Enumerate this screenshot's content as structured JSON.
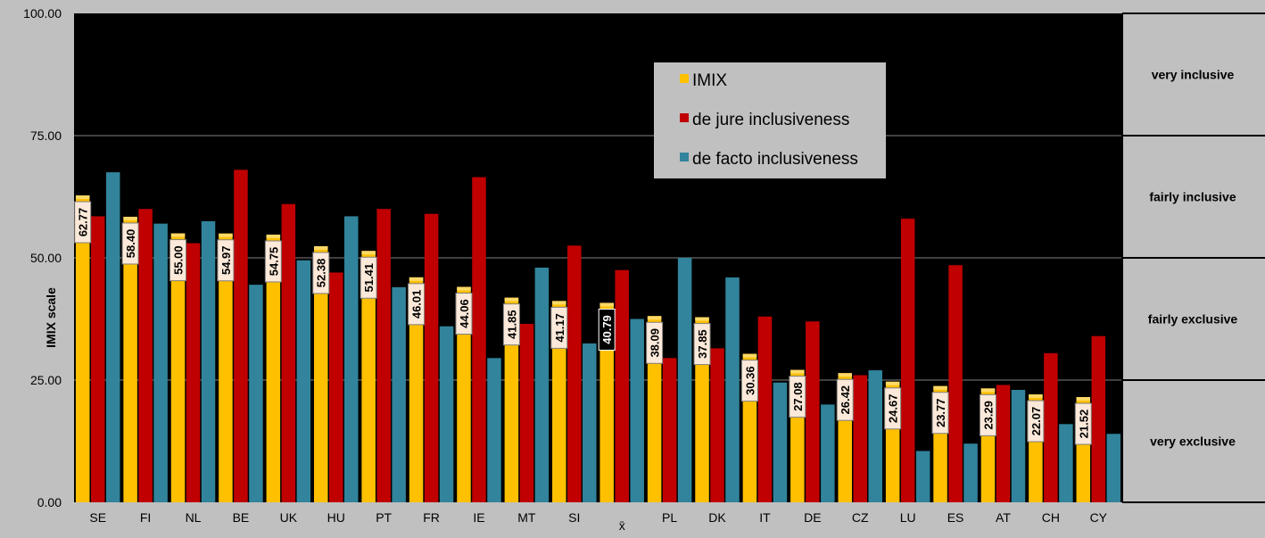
{
  "chart_data": {
    "type": "bar",
    "ylabel": "IMIX  scale",
    "ylim": [
      0,
      100
    ],
    "yticks": [
      "0.00",
      "25.00",
      "50.00",
      "75.00",
      "100.00"
    ],
    "categories": [
      "SE",
      "FI",
      "NL",
      "BE",
      "UK",
      "HU",
      "PT",
      "FR",
      "IE",
      "MT",
      "SI",
      "x̄",
      "PL",
      "DK",
      "IT",
      "DE",
      "CZ",
      "LU",
      "ES",
      "AT",
      "CH",
      "CY"
    ],
    "highlight_category": "x̄",
    "series": [
      {
        "name": "IMIX",
        "color": "#ffc000",
        "values": [
          62.77,
          58.4,
          55.0,
          54.97,
          54.75,
          52.38,
          51.41,
          46.01,
          44.06,
          41.85,
          41.17,
          40.79,
          38.09,
          37.85,
          30.36,
          27.08,
          26.42,
          24.67,
          23.77,
          23.29,
          22.07,
          21.52
        ],
        "labels": [
          "62.77",
          "58.40",
          "55.00",
          "54.97",
          "54.75",
          "52.38",
          "51.41",
          "46.01",
          "44.06",
          "41.85",
          "41.17",
          "40.79",
          "38.09",
          "37.85",
          "30.36",
          "27.08",
          "26.42",
          "24.67",
          "23.77",
          "23.29",
          "22.07",
          "21.52"
        ]
      },
      {
        "name": "de jure inclusiveness",
        "color": "#c00000",
        "values": [
          58.5,
          60,
          53,
          68,
          61,
          47,
          60,
          59,
          66.5,
          36.5,
          52.5,
          47.5,
          29.5,
          31.5,
          38,
          37,
          26,
          58,
          48.5,
          24,
          30.5,
          34
        ]
      },
      {
        "name": "de facto inclusiveness",
        "color": "#31849b",
        "values": [
          67.5,
          57,
          57.5,
          44.5,
          49.5,
          58.5,
          44,
          36,
          29.5,
          48,
          32.5,
          37.5,
          50,
          46,
          24.5,
          20,
          27,
          10.5,
          12,
          23,
          16,
          14
        ]
      }
    ],
    "bands": [
      {
        "label": "very inclusive",
        "from": 75,
        "to": 100
      },
      {
        "label": "fairly  inclusive",
        "from": 50,
        "to": 75
      },
      {
        "label": "fairly  exclusive",
        "from": 25,
        "to": 50
      },
      {
        "label": "very exclusive",
        "from": 0,
        "to": 25
      }
    ],
    "legend_position": "top-center",
    "grid": true
  }
}
